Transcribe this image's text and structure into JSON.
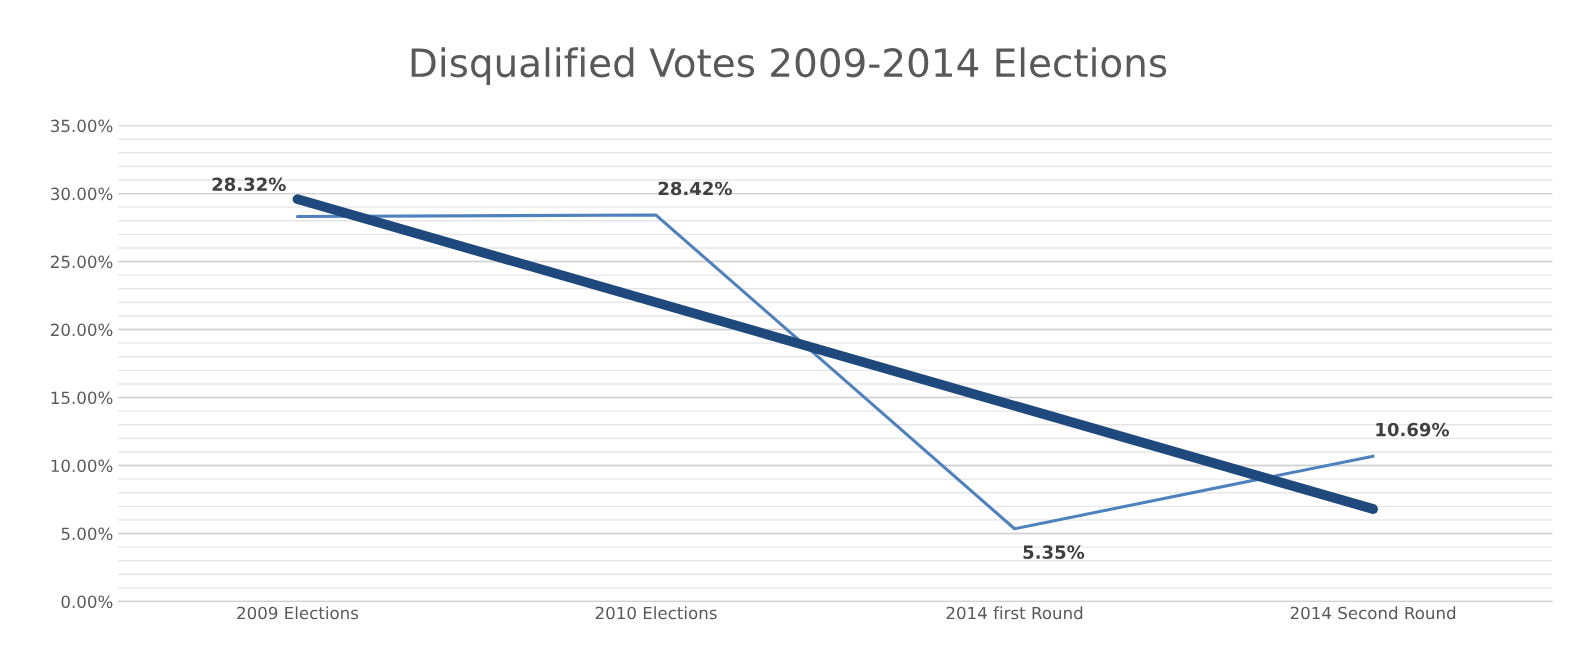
{
  "chart_data": {
    "type": "line",
    "title": "Disqualified Votes 2009-2014 Elections",
    "categories": [
      "2009 Elections",
      "2010 Elections",
      "2014 first Round",
      "2014 Second Round"
    ],
    "series": [
      {
        "color": "#4f81bd",
        "values": [
          28.32,
          28.42,
          5.35,
          10.69
        ],
        "value_labels": [
          "28.32%",
          "28.42%",
          "5.35%",
          "10.69%"
        ]
      },
      {
        "type": "line",
        "color": "#1f497d",
        "x": [
          "2009 Elections",
          "2014 Second Round"
        ],
        "values": [
          29.59,
          6.8
        ]
      }
    ],
    "ylim": [
      0,
      35
    ],
    "yticks": [
      {
        "value": 0,
        "label": "0.00%"
      },
      {
        "value": 1,
        "label": null
      },
      {
        "value": 2,
        "label": null
      },
      {
        "value": 3,
        "label": null
      },
      {
        "value": 4,
        "label": null
      },
      {
        "value": 5,
        "label": "5.00%"
      },
      {
        "value": 6,
        "label": null
      },
      {
        "value": 7,
        "label": null
      },
      {
        "value": 8,
        "label": null
      },
      {
        "value": 9,
        "label": null
      },
      {
        "value": 10,
        "label": "10.00%"
      },
      {
        "value": 11,
        "label": null
      },
      {
        "value": 12,
        "label": null
      },
      {
        "value": 13,
        "label": null
      },
      {
        "value": 14,
        "label": null
      },
      {
        "value": 15,
        "label": "15.00%"
      },
      {
        "value": 16,
        "label": null
      },
      {
        "value": 17,
        "label": null
      },
      {
        "value": 18,
        "label": null
      },
      {
        "value": 19,
        "label": null
      },
      {
        "value": 20,
        "label": "20.00%"
      },
      {
        "value": 21,
        "label": null
      },
      {
        "value": 22,
        "label": null
      },
      {
        "value": 23,
        "label": null
      },
      {
        "value": 24,
        "label": null
      },
      {
        "value": 25,
        "label": "25.00%"
      },
      {
        "value": 26,
        "label": null
      },
      {
        "value": 27,
        "label": null
      },
      {
        "value": 28,
        "label": null
      },
      {
        "value": 29,
        "label": null
      },
      {
        "value": 30,
        "label": "30.00%"
      },
      {
        "value": 31,
        "label": null
      },
      {
        "value": 32,
        "label": null
      },
      {
        "value": 33,
        "label": null
      },
      {
        "value": 34,
        "label": null
      },
      {
        "value": 35,
        "label": "35.00%"
      }
    ],
    "grid": "y",
    "marker": "none",
    "line_style": "solid"
  }
}
